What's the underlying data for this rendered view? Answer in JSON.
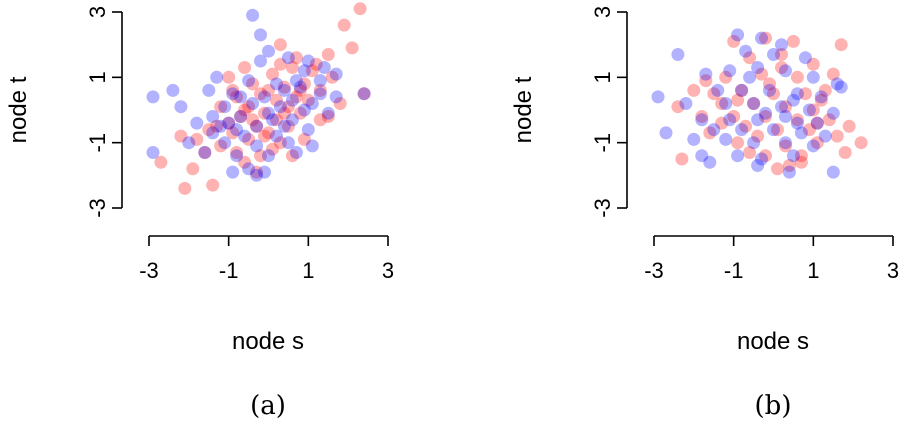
{
  "chart_data": [
    {
      "type": "scatter",
      "caption": "(a)",
      "xlabel": "node s",
      "ylabel": "node t",
      "xlim": [
        -3,
        3
      ],
      "ylim": [
        -3,
        3
      ],
      "xticks": [
        -3,
        -1,
        1,
        3
      ],
      "yticks": [
        -3,
        -1,
        1,
        3
      ],
      "xtick_labels": [
        "-3",
        "-1",
        "1",
        "3"
      ],
      "ytick_labels": [
        "-3",
        "-1",
        "1",
        "3"
      ],
      "grid": false,
      "legend": false,
      "series": [
        {
          "color": "#ff0000",
          "opacity": 0.3,
          "points": [
            [
              2.3,
              3.1
            ],
            [
              1.9,
              2.6
            ],
            [
              2.1,
              1.9
            ],
            [
              1.5,
              1.7
            ],
            [
              0.3,
              2.0
            ],
            [
              0.6,
              1.3
            ],
            [
              1.1,
              1.2
            ],
            [
              1.6,
              1.0
            ],
            [
              0.9,
              0.8
            ],
            [
              0.1,
              1.1
            ],
            [
              -0.6,
              1.3
            ],
            [
              -1.0,
              1.0
            ],
            [
              -0.4,
              0.8
            ],
            [
              0.4,
              0.7
            ],
            [
              1.3,
              0.6
            ],
            [
              0.7,
              0.4
            ],
            [
              -0.2,
              0.5
            ],
            [
              -0.8,
              0.4
            ],
            [
              0.2,
              0.3
            ],
            [
              1.0,
              0.3
            ],
            [
              -0.5,
              0.1
            ],
            [
              0.5,
              0.1
            ],
            [
              -1.2,
              0.1
            ],
            [
              -0.1,
              -0.1
            ],
            [
              0.8,
              -0.1
            ],
            [
              -0.7,
              -0.2
            ],
            [
              0.2,
              -0.3
            ],
            [
              -1.0,
              -0.4
            ],
            [
              -0.3,
              -0.5
            ],
            [
              0.5,
              -0.5
            ],
            [
              -1.5,
              -0.6
            ],
            [
              -0.9,
              -0.7
            ],
            [
              0.0,
              -0.7
            ],
            [
              -0.5,
              -0.9
            ],
            [
              0.3,
              -1.0
            ],
            [
              -1.2,
              -1.1
            ],
            [
              -0.8,
              -1.3
            ],
            [
              -0.2,
              -1.4
            ],
            [
              -1.6,
              -1.3
            ],
            [
              -0.6,
              -1.6
            ],
            [
              0.1,
              -1.2
            ],
            [
              -1.9,
              -1.8
            ],
            [
              -2.7,
              -1.6
            ],
            [
              -2.1,
              -2.4
            ],
            [
              -1.4,
              -2.3
            ],
            [
              -0.3,
              -1.9
            ],
            [
              0.6,
              -1.4
            ],
            [
              0.9,
              -0.9
            ],
            [
              1.3,
              -0.3
            ],
            [
              -2.2,
              -0.8
            ],
            [
              0.0,
              0.6
            ],
            [
              1.8,
              0.2
            ],
            [
              -0.4,
              -0.3
            ],
            [
              0.7,
              1.6
            ],
            [
              -1.3,
              -0.5
            ],
            [
              2.4,
              0.5
            ],
            [
              0.3,
              1.4
            ],
            [
              -0.9,
              0.6
            ],
            [
              1.2,
              1.4
            ],
            [
              -0.1,
              -0.8
            ],
            [
              0.4,
              -0.1
            ],
            [
              -0.6,
              0.0
            ],
            [
              1.5,
              -0.2
            ],
            [
              -1.8,
              -0.9
            ],
            [
              0.8,
              0.6
            ]
          ]
        },
        {
          "color": "#0000ff",
          "opacity": 0.3,
          "points": [
            [
              -0.4,
              2.9
            ],
            [
              -0.2,
              2.3
            ],
            [
              0.0,
              1.8
            ],
            [
              0.5,
              1.6
            ],
            [
              1.0,
              1.5
            ],
            [
              1.4,
              1.3
            ],
            [
              1.7,
              1.1
            ],
            [
              -1.3,
              1.0
            ],
            [
              -0.5,
              0.9
            ],
            [
              0.2,
              0.8
            ],
            [
              0.8,
              0.7
            ],
            [
              1.3,
              0.5
            ],
            [
              2.4,
              0.5
            ],
            [
              -2.9,
              0.4
            ],
            [
              -2.4,
              0.6
            ],
            [
              -1.5,
              0.6
            ],
            [
              -0.9,
              0.5
            ],
            [
              -0.1,
              0.4
            ],
            [
              0.6,
              0.3
            ],
            [
              1.1,
              0.2
            ],
            [
              -2.2,
              0.1
            ],
            [
              -1.1,
              0.1
            ],
            [
              -0.4,
              0.2
            ],
            [
              0.3,
              0.1
            ],
            [
              0.9,
              0.0
            ],
            [
              -1.4,
              -0.2
            ],
            [
              -0.7,
              -0.2
            ],
            [
              0.0,
              -0.1
            ],
            [
              0.6,
              -0.3
            ],
            [
              -1.8,
              -0.4
            ],
            [
              -1.0,
              -0.4
            ],
            [
              -0.3,
              -0.5
            ],
            [
              0.4,
              -0.5
            ],
            [
              1.0,
              -0.6
            ],
            [
              -1.4,
              -0.7
            ],
            [
              -0.6,
              -0.8
            ],
            [
              0.2,
              -0.8
            ],
            [
              -2.0,
              -1.0
            ],
            [
              -1.1,
              -1.0
            ],
            [
              -0.3,
              -1.1
            ],
            [
              0.5,
              -1.0
            ],
            [
              1.1,
              -1.1
            ],
            [
              -2.9,
              -1.3
            ],
            [
              -1.6,
              -1.3
            ],
            [
              -0.8,
              -1.4
            ],
            [
              0.0,
              -1.4
            ],
            [
              0.7,
              -1.3
            ],
            [
              -0.5,
              -1.8
            ],
            [
              -0.9,
              -1.9
            ],
            [
              -0.1,
              -1.9
            ],
            [
              -0.3,
              -2.0
            ],
            [
              1.5,
              -0.1
            ],
            [
              1.3,
              0.9
            ],
            [
              -0.2,
              1.5
            ],
            [
              0.9,
              1.2
            ],
            [
              -0.7,
              0.4
            ],
            [
              0.1,
              -0.3
            ],
            [
              -1.2,
              -0.5
            ],
            [
              0.4,
              0.6
            ],
            [
              1.7,
              0.4
            ],
            [
              -0.8,
              -0.6
            ],
            [
              0.7,
              0.9
            ]
          ]
        }
      ]
    },
    {
      "type": "scatter",
      "caption": "(b)",
      "xlabel": "node s",
      "ylabel": "node t",
      "xlim": [
        -3,
        3
      ],
      "ylim": [
        -3,
        3
      ],
      "xticks": [
        -3,
        -1,
        1,
        3
      ],
      "yticks": [
        -3,
        -1,
        1,
        3
      ],
      "xtick_labels": [
        "-3",
        "-1",
        "1",
        "3"
      ],
      "ytick_labels": [
        "-3",
        "-1",
        "1",
        "3"
      ],
      "grid": false,
      "legend": false,
      "series": [
        {
          "color": "#ff0000",
          "opacity": 0.3,
          "points": [
            [
              -1.0,
              2.1
            ],
            [
              -0.2,
              2.2
            ],
            [
              0.5,
              2.1
            ],
            [
              1.7,
              2.0
            ],
            [
              -0.6,
              1.6
            ],
            [
              0.2,
              1.7
            ],
            [
              1.0,
              1.4
            ],
            [
              1.5,
              1.1
            ],
            [
              -1.2,
              1.0
            ],
            [
              -0.3,
              1.1
            ],
            [
              0.6,
              1.0
            ],
            [
              -2.0,
              0.6
            ],
            [
              -1.5,
              0.5
            ],
            [
              -0.8,
              0.6
            ],
            [
              0.0,
              0.5
            ],
            [
              0.8,
              0.5
            ],
            [
              1.2,
              0.3
            ],
            [
              -2.4,
              0.1
            ],
            [
              -1.3,
              0.2
            ],
            [
              -0.5,
              0.2
            ],
            [
              0.3,
              0.1
            ],
            [
              1.0,
              0.0
            ],
            [
              -1.8,
              -0.2
            ],
            [
              -1.0,
              -0.2
            ],
            [
              -0.2,
              -0.2
            ],
            [
              0.6,
              -0.3
            ],
            [
              1.4,
              -0.3
            ],
            [
              1.9,
              -0.5
            ],
            [
              -0.7,
              -0.5
            ],
            [
              0.1,
              -0.6
            ],
            [
              0.9,
              -0.6
            ],
            [
              -1.6,
              -0.7
            ],
            [
              -0.4,
              -0.8
            ],
            [
              1.6,
              -0.8
            ],
            [
              2.2,
              -1.0
            ],
            [
              -0.9,
              -1.0
            ],
            [
              0.3,
              -1.1
            ],
            [
              1.1,
              -1.0
            ],
            [
              -2.3,
              -1.5
            ],
            [
              -0.2,
              -1.4
            ],
            [
              0.7,
              -1.4
            ],
            [
              1.8,
              -1.3
            ],
            [
              0.1,
              -1.8
            ],
            [
              0.4,
              -1.7
            ],
            [
              0.7,
              -1.6
            ],
            [
              -1.3,
              -0.4
            ],
            [
              -0.1,
              0.8
            ],
            [
              1.3,
              0.6
            ],
            [
              -0.6,
              -1.3
            ],
            [
              0.2,
              1.3
            ],
            [
              -1.7,
              0.9
            ],
            [
              1.1,
              -0.4
            ],
            [
              -0.9,
              0.3
            ]
          ]
        },
        {
          "color": "#0000ff",
          "opacity": 0.3,
          "points": [
            [
              -0.9,
              2.3
            ],
            [
              -0.3,
              2.2
            ],
            [
              0.2,
              2.0
            ],
            [
              -2.4,
              1.7
            ],
            [
              -0.7,
              1.8
            ],
            [
              0.0,
              1.7
            ],
            [
              0.8,
              1.6
            ],
            [
              -1.7,
              1.1
            ],
            [
              -1.1,
              1.2
            ],
            [
              -0.4,
              1.3
            ],
            [
              0.3,
              1.2
            ],
            [
              1.0,
              1.0
            ],
            [
              1.6,
              0.8
            ],
            [
              -1.4,
              0.6
            ],
            [
              -0.8,
              0.6
            ],
            [
              -0.1,
              0.6
            ],
            [
              0.6,
              0.5
            ],
            [
              1.2,
              0.4
            ],
            [
              -2.9,
              0.4
            ],
            [
              -2.2,
              0.2
            ],
            [
              -1.2,
              0.2
            ],
            [
              -0.5,
              0.2
            ],
            [
              0.2,
              0.1
            ],
            [
              0.9,
              0.0
            ],
            [
              1.5,
              -0.1
            ],
            [
              -1.8,
              -0.3
            ],
            [
              -1.1,
              -0.3
            ],
            [
              -0.4,
              -0.3
            ],
            [
              0.3,
              -0.2
            ],
            [
              1.1,
              -0.4
            ],
            [
              -2.7,
              -0.7
            ],
            [
              -1.5,
              -0.6
            ],
            [
              -0.8,
              -0.6
            ],
            [
              0.0,
              -0.6
            ],
            [
              0.7,
              -0.7
            ],
            [
              1.3,
              -0.8
            ],
            [
              -2.0,
              -0.9
            ],
            [
              -1.2,
              -0.9
            ],
            [
              -0.5,
              -1.0
            ],
            [
              0.3,
              -1.0
            ],
            [
              1.0,
              -1.1
            ],
            [
              -1.8,
              -1.4
            ],
            [
              -0.9,
              -1.4
            ],
            [
              -0.3,
              -1.5
            ],
            [
              0.5,
              -1.4
            ],
            [
              -1.6,
              -1.6
            ],
            [
              -0.4,
              -1.7
            ],
            [
              0.4,
              -1.9
            ],
            [
              1.5,
              -1.9
            ],
            [
              0.5,
              0.3
            ],
            [
              -0.2,
              -0.1
            ],
            [
              1.7,
              0.7
            ],
            [
              -0.6,
              1.0
            ],
            [
              0.6,
              -0.4
            ]
          ]
        }
      ]
    }
  ]
}
